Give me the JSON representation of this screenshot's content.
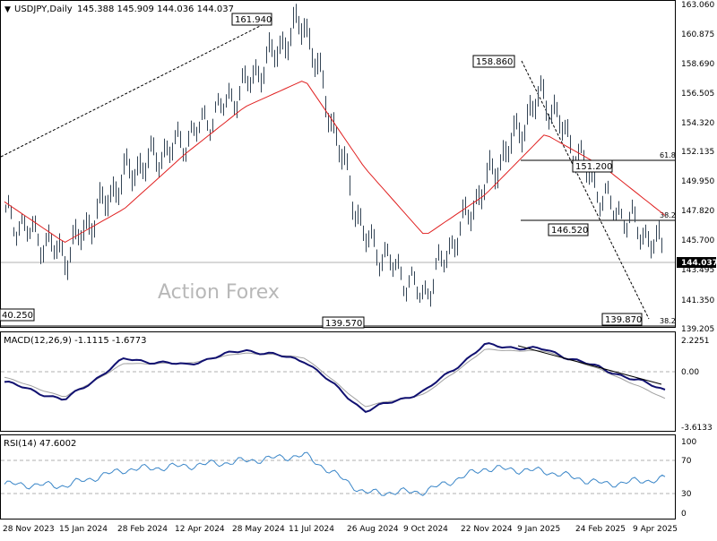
{
  "header": {
    "symbol_label": "USDJPY,Daily",
    "ohlc": "145.388 145.909 144.036 144.037"
  },
  "watermark": "Action Forex",
  "price_panel": {
    "y_ticks": [
      "163.060",
      "160.875",
      "158.690",
      "156.505",
      "154.320",
      "152.135",
      "149.950",
      "147.820",
      "145.700",
      "143.495",
      "141.350",
      "139.205"
    ],
    "current_price": "144.037",
    "annotations": [
      {
        "label": "161.940",
        "kind": "swing-high"
      },
      {
        "label": "158.860",
        "kind": "swing-high"
      },
      {
        "label": "151.200",
        "kind": "pivot"
      },
      {
        "label": "146.520",
        "kind": "pivot"
      },
      {
        "label": "139.870",
        "kind": "swing-low"
      },
      {
        "label": "139.570",
        "kind": "swing-low"
      },
      {
        "label": "40.250",
        "kind": "swing-low"
      }
    ],
    "fib_labels": [
      "61.8",
      "38.2",
      "38.2"
    ]
  },
  "macd_panel": {
    "label": "MACD(12,26,9) -1.1115 -1.6773",
    "y_ticks": [
      "2.2251",
      "0.00",
      "-3.6133"
    ]
  },
  "rsi_panel": {
    "label": "RSI(14) 47.6002",
    "y_ticks": [
      "100",
      "70",
      "30",
      "0"
    ]
  },
  "x_axis": {
    "ticks": [
      "28 Nov 2023",
      "15 Jan 2024",
      "28 Feb 2024",
      "12 Apr 2024",
      "28 May 2024",
      "11 Jul 2024",
      "26 Aug 2024",
      "9 Oct 2024",
      "22 Nov 2024",
      "9 Jan 2025",
      "24 Feb 2025",
      "9 Apr 2025"
    ]
  },
  "colors": {
    "candles": "#334455",
    "moving_average": "#e02020",
    "macd_line": "#101070",
    "signal_line": "#a0a0a0",
    "rsi_line": "#3a86c8"
  },
  "chart_data": [
    {
      "type": "line",
      "title": "USDJPY,Daily",
      "x": [
        "28 Nov 2023",
        "15 Jan 2024",
        "28 Feb 2024",
        "12 Apr 2024",
        "28 May 2024",
        "11 Jul 2024",
        "26 Aug 2024",
        "9 Oct 2024",
        "22 Nov 2024",
        "9 Jan 2025",
        "24 Feb 2025",
        "9 Apr 2025"
      ],
      "ylim": [
        139.205,
        163.06
      ],
      "series": [
        {
          "name": "price",
          "values": [
            147.5,
            144.5,
            150.5,
            153.0,
            157.0,
            161.9,
            146.0,
            141.5,
            149.5,
            156.5,
            148.8,
            145.0
          ]
        },
        {
          "name": "MA",
          "values": [
            148.5,
            145.5,
            148.0,
            152.0,
            155.5,
            157.5,
            151.0,
            146.0,
            149.0,
            153.5,
            151.0,
            147.5
          ]
        }
      ],
      "annotations": [
        "161.940",
        "158.860",
        "151.200",
        "146.520",
        "139.870",
        "139.570",
        "40.250",
        "144.037"
      ]
    },
    {
      "type": "line",
      "title": "MACD(12,26,9) -1.1115 -1.6773",
      "ylim": [
        -3.6133,
        2.2251
      ],
      "series": [
        {
          "name": "MACD",
          "values": [
            -0.6,
            -1.8,
            0.9,
            0.5,
            1.5,
            0.8,
            -2.5,
            -1.2,
            1.8,
            1.5,
            0.2,
            -1.1115
          ]
        },
        {
          "name": "signal",
          "values": [
            -0.3,
            -1.6,
            0.6,
            0.6,
            1.3,
            1.0,
            -2.2,
            -1.4,
            1.5,
            1.4,
            0.1,
            -1.6773
          ]
        }
      ]
    },
    {
      "type": "line",
      "title": "RSI(14) 47.6002",
      "ylim": [
        0,
        100
      ],
      "series": [
        {
          "name": "RSI",
          "values": [
            40,
            38,
            60,
            65,
            72,
            80,
            28,
            30,
            62,
            58,
            40,
            47.6
          ]
        }
      ]
    }
  ]
}
